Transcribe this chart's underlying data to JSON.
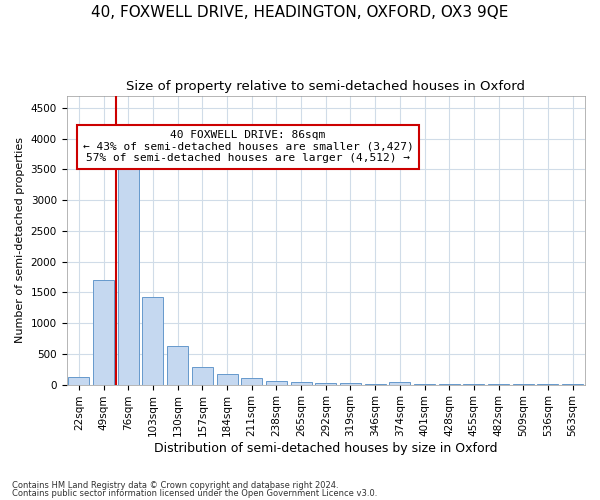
{
  "title": "40, FOXWELL DRIVE, HEADINGTON, OXFORD, OX3 9QE",
  "subtitle": "Size of property relative to semi-detached houses in Oxford",
  "xlabel": "Distribution of semi-detached houses by size in Oxford",
  "ylabel": "Number of semi-detached properties",
  "bar_labels": [
    "22sqm",
    "49sqm",
    "76sqm",
    "103sqm",
    "130sqm",
    "157sqm",
    "184sqm",
    "211sqm",
    "238sqm",
    "265sqm",
    "292sqm",
    "319sqm",
    "346sqm",
    "374sqm",
    "401sqm",
    "428sqm",
    "455sqm",
    "482sqm",
    "509sqm",
    "536sqm",
    "563sqm"
  ],
  "bar_values": [
    130,
    1700,
    3500,
    1430,
    620,
    280,
    175,
    100,
    55,
    40,
    30,
    20,
    15,
    50,
    5,
    5,
    5,
    5,
    5,
    5,
    5
  ],
  "bar_color": "#c5d8f0",
  "bar_edge_color": "#6699cc",
  "vline_color": "#cc0000",
  "annotation_text": "40 FOXWELL DRIVE: 86sqm\n← 43% of semi-detached houses are smaller (3,427)\n57% of semi-detached houses are larger (4,512) →",
  "annotation_box_color": "#ffffff",
  "annotation_box_edge": "#cc0000",
  "ylim": [
    0,
    4700
  ],
  "yticks": [
    0,
    500,
    1000,
    1500,
    2000,
    2500,
    3000,
    3500,
    4000,
    4500
  ],
  "footnote1": "Contains HM Land Registry data © Crown copyright and database right 2024.",
  "footnote2": "Contains public sector information licensed under the Open Government Licence v3.0.",
  "bg_color": "#ffffff",
  "fig_bg_color": "#ffffff",
  "grid_color": "#d0dce8",
  "title_fontsize": 11,
  "subtitle_fontsize": 9.5,
  "xlabel_fontsize": 9,
  "ylabel_fontsize": 8,
  "tick_fontsize": 7.5,
  "annotation_fontsize": 8
}
